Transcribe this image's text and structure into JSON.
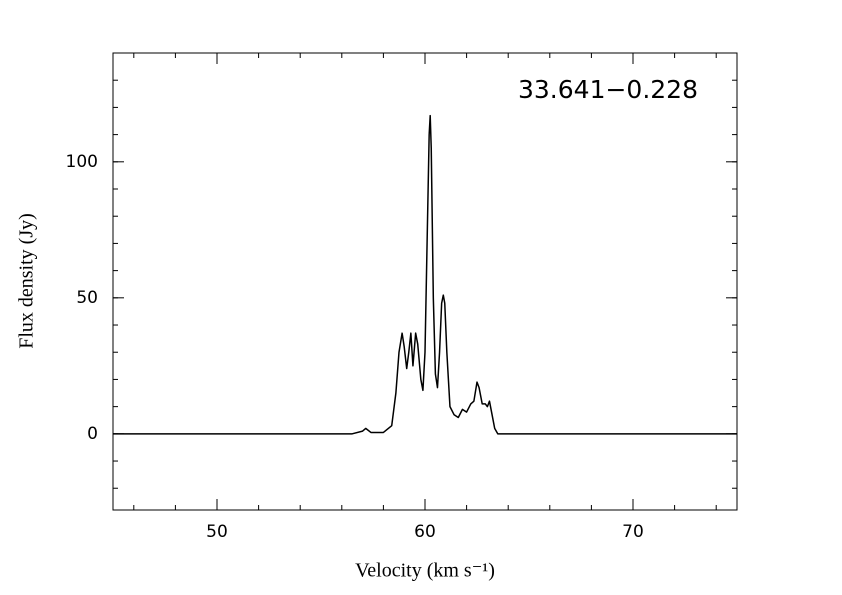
{
  "chart_data": {
    "type": "line",
    "title": "33.641−0.228",
    "x_label": "Velocity (km s⁻¹)",
    "y_label": "Flux density (Jy)",
    "x": [
      45,
      47,
      49,
      51,
      53,
      55,
      56.5,
      57,
      57.15,
      57.4,
      58,
      58.4,
      58.6,
      58.75,
      58.9,
      59.0,
      59.12,
      59.22,
      59.32,
      59.42,
      59.55,
      59.65,
      59.8,
      59.9,
      60.0,
      60.1,
      60.2,
      60.25,
      60.3,
      60.4,
      60.5,
      60.6,
      60.7,
      60.8,
      60.88,
      60.95,
      61.05,
      61.2,
      61.4,
      61.6,
      61.8,
      62.0,
      62.2,
      62.35,
      62.5,
      62.6,
      62.75,
      62.9,
      63.0,
      63.1,
      63.2,
      63.35,
      63.5,
      64,
      66,
      68,
      70,
      72,
      75
    ],
    "values": [
      0,
      0,
      0,
      0,
      0,
      0,
      0,
      1,
      2,
      0.5,
      0.5,
      3,
      15,
      30,
      37,
      32,
      24,
      30,
      37,
      25,
      37,
      33,
      20,
      16,
      30,
      70,
      110,
      117,
      105,
      50,
      22,
      17,
      30,
      48,
      51,
      48,
      30,
      10,
      7,
      6,
      9,
      8,
      11,
      12,
      19,
      17,
      11,
      11,
      10,
      12,
      8,
      2,
      0,
      0,
      0,
      0,
      0,
      0,
      0
    ],
    "color": "#000000",
    "xlim": [
      45,
      75
    ],
    "xticks": [
      50,
      60,
      70
    ],
    "ylim": [
      -28,
      140
    ],
    "yticks": [
      0,
      50,
      100
    ]
  }
}
